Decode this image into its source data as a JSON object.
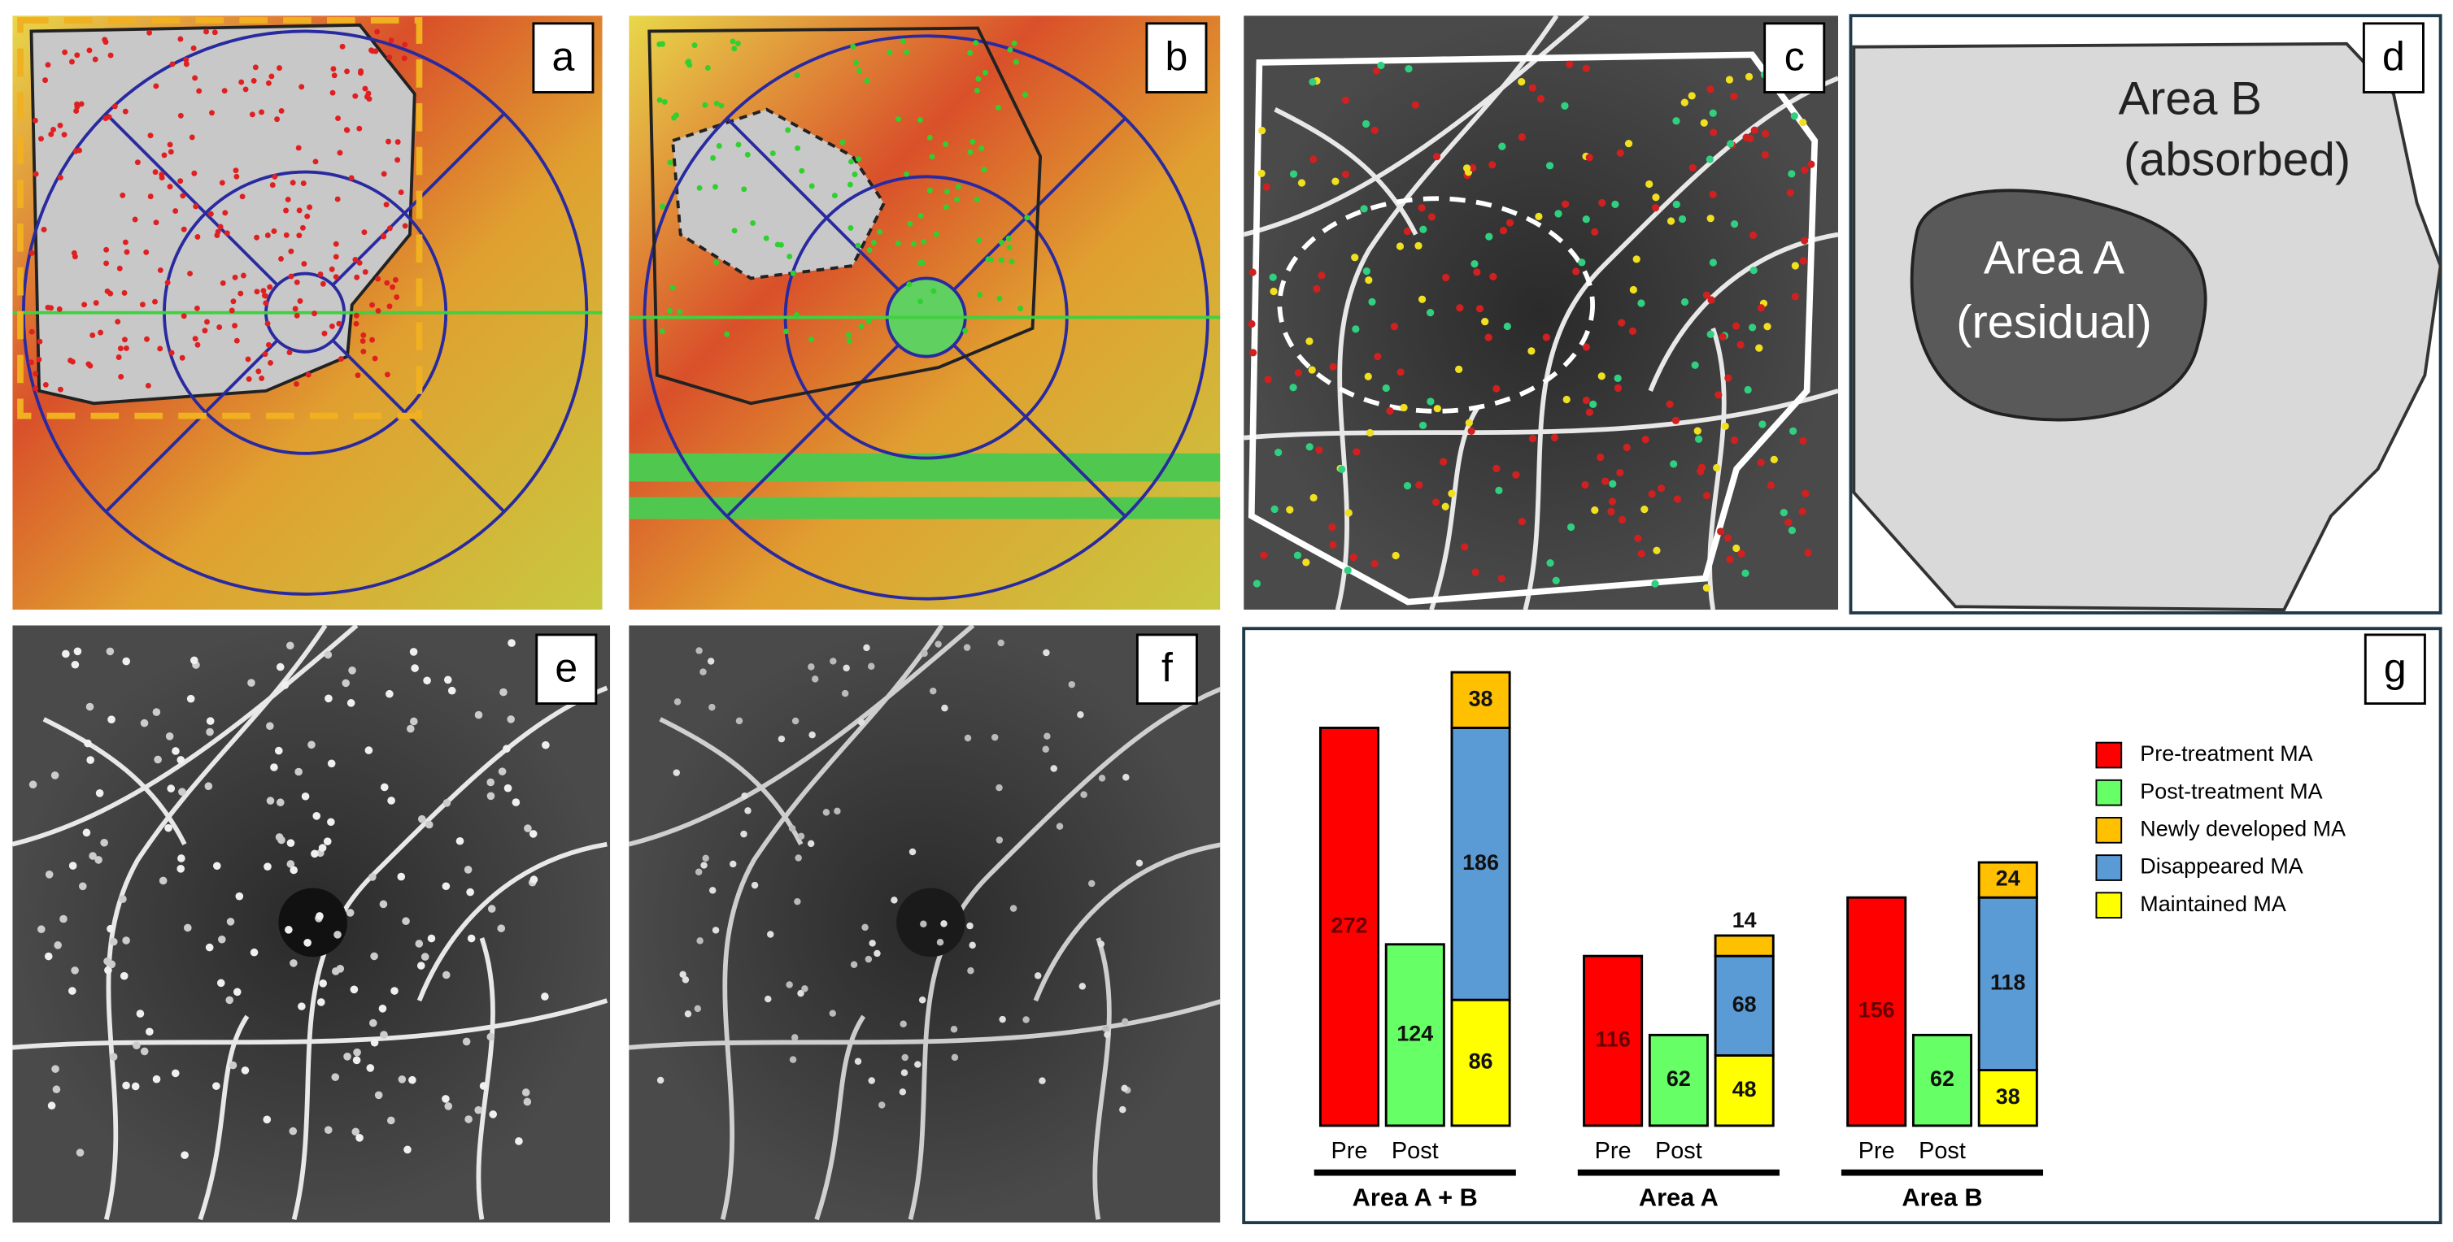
{
  "panels": {
    "labels": [
      "a",
      "b",
      "c",
      "d",
      "e",
      "f",
      "g"
    ]
  },
  "diagram": {
    "area_b": "Area B",
    "area_b_note": "(absorbed)",
    "area_a": "Area A",
    "area_a_note": "(residual)"
  },
  "chart_data": {
    "type": "bar",
    "stacked": true,
    "categories": [
      "Area A + B",
      "Area A",
      "Area B"
    ],
    "bar_labels": [
      "Pre",
      "Post"
    ],
    "series": [
      {
        "name": "Pre-treatment MA",
        "color": "#ff0000",
        "values": [
          272,
          116,
          156
        ]
      },
      {
        "name": "Post-treatment MA",
        "color": "#66ff66",
        "values": [
          124,
          62,
          62
        ]
      },
      {
        "name": "Newly developed MA",
        "color": "#ffc000",
        "values": [
          38,
          14,
          24
        ]
      },
      {
        "name": "Disappeared MA",
        "color": "#5b9bd5",
        "values": [
          186,
          68,
          118
        ]
      },
      {
        "name": "Maintained MA",
        "color": "#ffff00",
        "values": [
          86,
          48,
          38
        ]
      }
    ],
    "legend": "right"
  }
}
